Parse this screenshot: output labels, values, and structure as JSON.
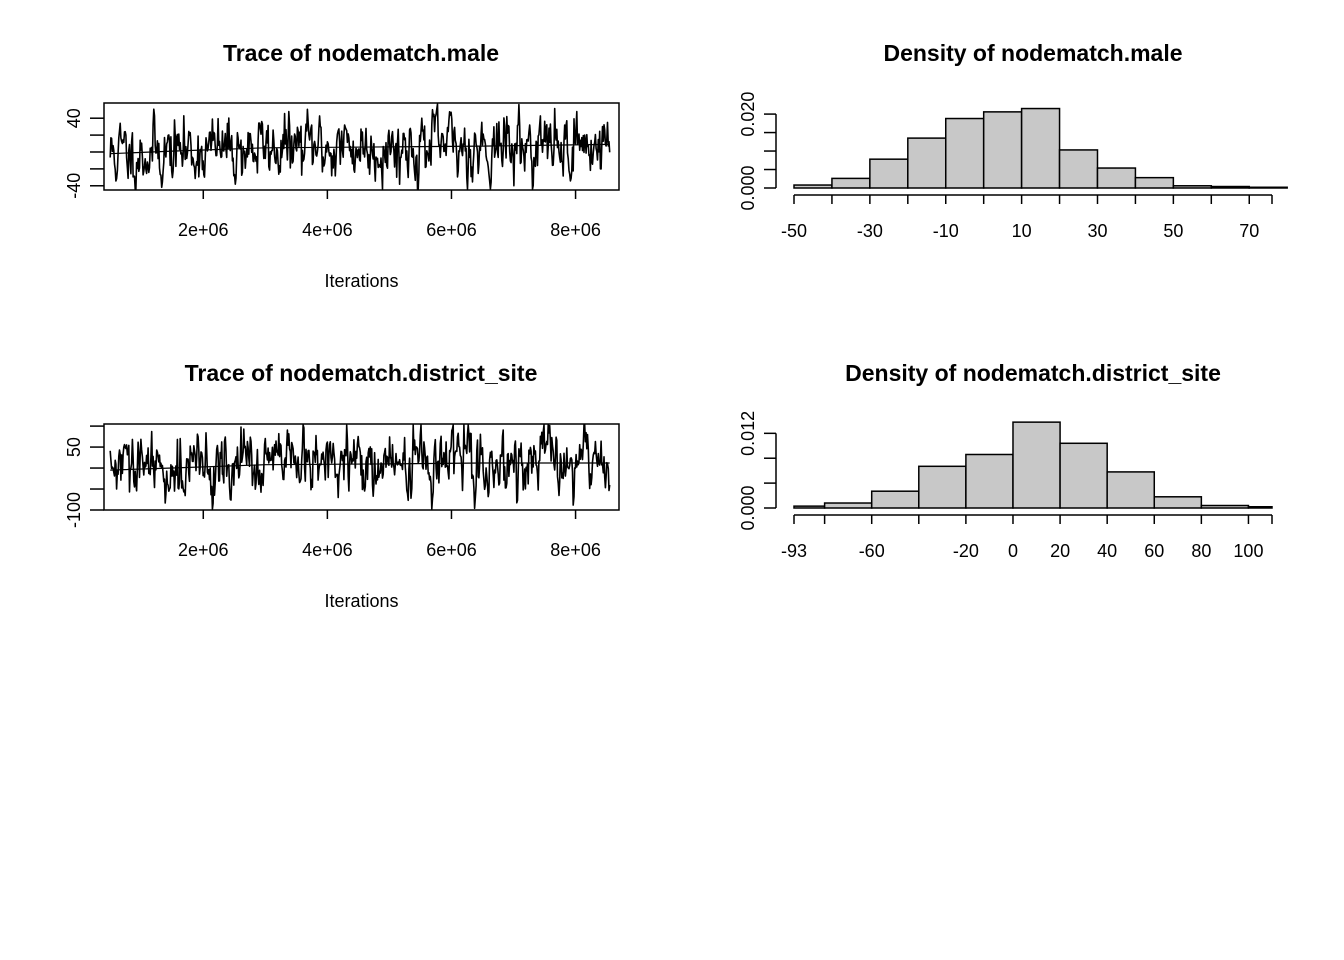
{
  "colors": {
    "line": "#000000",
    "bar_fill": "#c8c8c8",
    "bar_stroke": "#000000",
    "background": "#ffffff"
  },
  "chart_data": [
    {
      "id": "trace-male",
      "type": "line",
      "title": "Trace of nodematch.male",
      "xlabel": "Iterations",
      "ylabel": "",
      "xlim": [
        400000,
        8700000
      ],
      "ylim": [
        -45,
        58
      ],
      "x_ticks": [
        2000000,
        4000000,
        6000000,
        8000000
      ],
      "x_tick_labels": [
        "2e+06",
        "4e+06",
        "6e+06",
        "8e+06"
      ],
      "y_ticks": [
        -40,
        -20,
        0,
        20,
        40
      ],
      "y_tick_labels": [
        "-40",
        "",
        "",
        "",
        "40"
      ],
      "x_start": 500000,
      "x_end": 8550000,
      "n_points": 700,
      "seed": 11,
      "trend": [
        [
          500000,
          -2
        ],
        [
          1500000,
          1
        ],
        [
          3000000,
          5
        ],
        [
          5000000,
          6
        ],
        [
          6500000,
          7
        ],
        [
          8550000,
          9
        ]
      ],
      "series": [
        {
          "values_summary": "MCMC trace oscillating mostly between -40 and 50, with a few dips to -45 and peaks near 55"
        }
      ]
    },
    {
      "id": "density-male",
      "type": "bar",
      "title": "Density of nodematch.male",
      "xlabel": "",
      "ylabel": "",
      "xlim": [
        -50,
        76
      ],
      "ylim": [
        0,
        0.023
      ],
      "bin_edges": [
        -50,
        -40,
        -30,
        -20,
        -10,
        0,
        10,
        20,
        30,
        40,
        50,
        60,
        70,
        80
      ],
      "values": [
        0.0008,
        0.0026,
        0.0078,
        0.0135,
        0.0188,
        0.0206,
        0.0215,
        0.0103,
        0.0054,
        0.0028,
        0.0006,
        0.0004,
        0.0002
      ],
      "x_ticks": [
        -50,
        -40,
        -30,
        -20,
        -10,
        0,
        10,
        20,
        30,
        40,
        50,
        60,
        70,
        76
      ],
      "x_tick_labels": [
        "-50",
        "",
        "-30",
        "",
        "-10",
        "",
        "10",
        "",
        "30",
        "",
        "50",
        "",
        "70",
        ""
      ],
      "y_ticks": [
        0.0,
        0.005,
        0.01,
        0.015,
        0.02
      ],
      "y_tick_labels": [
        "0.000",
        "",
        "",
        "",
        "0.020"
      ]
    },
    {
      "id": "trace-district",
      "type": "line",
      "title": "Trace of nodematch.district_site",
      "xlabel": "Iterations",
      "ylabel": "",
      "xlim": [
        400000,
        8700000
      ],
      "ylim": [
        -100,
        105
      ],
      "x_ticks": [
        2000000,
        4000000,
        6000000,
        8000000
      ],
      "x_tick_labels": [
        "2e+06",
        "4e+06",
        "6e+06",
        "8e+06"
      ],
      "y_ticks": [
        -100,
        -50,
        0,
        50,
        100
      ],
      "y_tick_labels": [
        "-100",
        "",
        "",
        "50",
        ""
      ],
      "x_start": 500000,
      "x_end": 8550000,
      "n_points": 700,
      "seed": 29,
      "trend": [
        [
          500000,
          -5
        ],
        [
          1500000,
          0
        ],
        [
          3000000,
          8
        ],
        [
          5000000,
          10
        ],
        [
          6500000,
          12
        ],
        [
          8550000,
          12
        ]
      ],
      "series": [
        {
          "values_summary": "MCMC trace oscillating mostly between -90 and 90, with dips to about -100 and peaks near 100"
        }
      ]
    },
    {
      "id": "density-district",
      "type": "bar",
      "title": "Density of nodematch.district_site",
      "xlabel": "",
      "ylabel": "",
      "xlim": [
        -93,
        110
      ],
      "ylim": [
        0,
        0.0135
      ],
      "bin_edges": [
        -93,
        -80,
        -60,
        -40,
        -20,
        0,
        20,
        40,
        60,
        80,
        100,
        110
      ],
      "values": [
        0.0003,
        0.0008,
        0.0027,
        0.0067,
        0.0086,
        0.0138,
        0.0104,
        0.0058,
        0.0018,
        0.0004,
        0.0002
      ],
      "x_ticks": [
        -93,
        -80,
        -60,
        -40,
        -20,
        0,
        20,
        40,
        60,
        80,
        100,
        110
      ],
      "x_tick_labels": [
        "-93",
        "",
        "-60",
        "",
        "-20",
        "0",
        "20",
        "40",
        "60",
        "80",
        "100",
        ""
      ],
      "y_ticks": [
        0.0,
        0.004,
        0.008,
        0.012
      ],
      "y_tick_labels": [
        "0.000",
        "",
        "",
        "0.012"
      ]
    }
  ]
}
